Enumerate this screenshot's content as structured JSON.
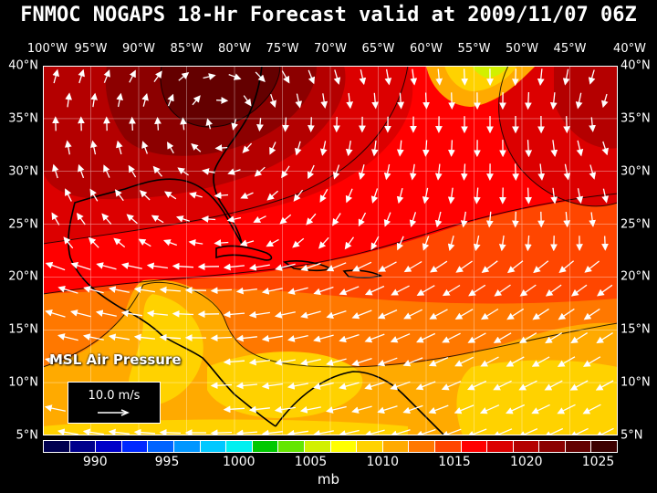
{
  "title": "FNMOC NOGAPS 18-Hr Forecast valid at 2009/11/07 06Z",
  "longitude_labels": [
    "100°W",
    "95°W",
    "90°W",
    "85°W",
    "80°W",
    "75°W",
    "70°W",
    "65°W",
    "60°W",
    "55°W",
    "50°W",
    "45°W",
    "40°W"
  ],
  "latitude_labels": [
    "40°N",
    "35°N",
    "30°N",
    "25°N",
    "20°N",
    "15°N",
    "10°N",
    "5°N"
  ],
  "field_label": "MSL Air Pressure",
  "wind_reference": {
    "label": "10.0 m/s",
    "speed_ms": 10.0
  },
  "legend": {
    "unit": "mb",
    "tick_labels": [
      "990",
      "995",
      "1000",
      "1005",
      "1010",
      "1015",
      "1020",
      "1025"
    ],
    "colors": [
      "#000050",
      "#00008c",
      "#0000c8",
      "#0028ff",
      "#0064ff",
      "#0096ff",
      "#00c8ff",
      "#00f0f0",
      "#00c800",
      "#64e600",
      "#d2f000",
      "#ffff00",
      "#ffd200",
      "#ffaa00",
      "#ff7800",
      "#ff4600",
      "#ff0000",
      "#dc0000",
      "#b40000",
      "#8c0000",
      "#640000",
      "#3c0000"
    ]
  },
  "colors": {
    "background": "#000000",
    "coast": "#000000",
    "grid": "#ffffff",
    "arrows": "#ffffff"
  }
}
